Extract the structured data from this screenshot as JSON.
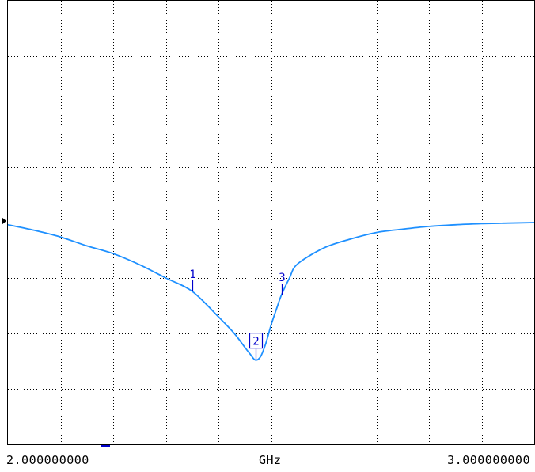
{
  "chart_data": {
    "type": "line",
    "xlabel": "GHz",
    "x_start_label": "2.000000000",
    "x_end_label": "3.000000000",
    "xlim": [
      2.0,
      3.0
    ],
    "ylim": [
      0,
      8
    ],
    "grid": true,
    "x_divisions": 10,
    "y_divisions": 8,
    "reference_level": 4,
    "colors": {
      "trace": "#1e90ff",
      "marker": "#0000cc",
      "frame": "#000000",
      "grid": "#000000"
    },
    "series": [
      {
        "x": [
          2.0,
          2.05,
          2.1,
          2.15,
          2.2,
          2.25,
          2.3,
          2.35,
          2.4,
          2.43,
          2.45,
          2.46,
          2.47,
          2.48,
          2.49,
          2.5,
          2.51,
          2.52,
          2.535,
          2.55,
          2.6,
          2.65,
          2.7,
          2.75,
          2.8,
          2.85,
          2.9,
          2.95,
          3.0
        ],
        "y": [
          3.96,
          3.86,
          3.74,
          3.58,
          3.44,
          3.24,
          3.0,
          2.76,
          2.3,
          2.0,
          1.75,
          1.63,
          1.52,
          1.58,
          1.82,
          2.15,
          2.43,
          2.7,
          3.0,
          3.25,
          3.54,
          3.7,
          3.82,
          3.88,
          3.93,
          3.96,
          3.98,
          3.99,
          4.0
        ]
      }
    ],
    "markers": [
      {
        "label": "1",
        "x": 2.35,
        "y": 2.76,
        "boxed": false
      },
      {
        "label": "2",
        "x": 2.47,
        "y": 1.52,
        "boxed": true
      },
      {
        "label": "3",
        "x": 2.52,
        "y": 2.7,
        "boxed": false
      }
    ]
  }
}
